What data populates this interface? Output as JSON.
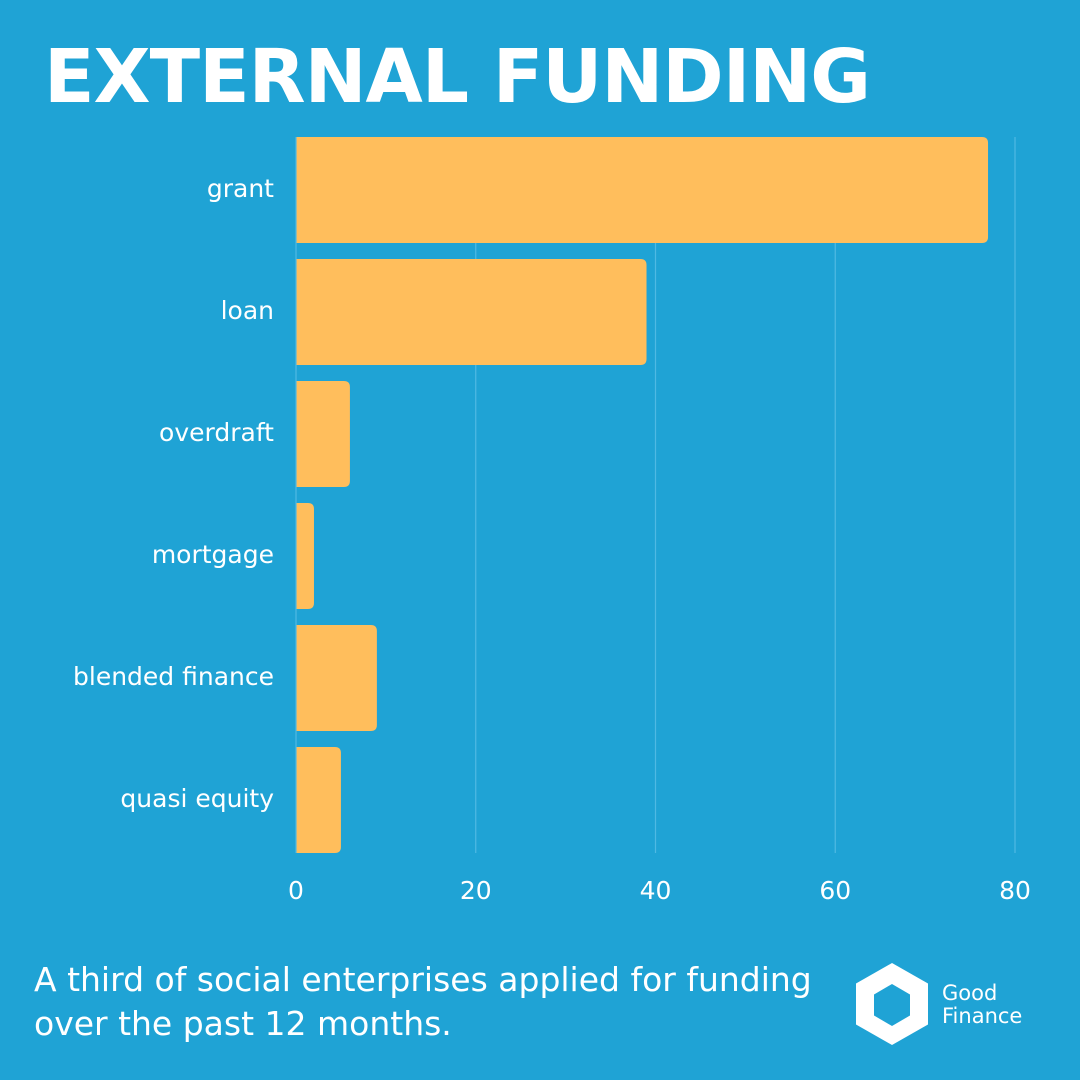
{
  "header": {
    "title": "EXTERNAL FUNDING"
  },
  "chart_data": {
    "type": "bar",
    "orientation": "horizontal",
    "title": "EXTERNAL FUNDING",
    "xlabel": "",
    "ylabel": "",
    "categories": [
      "grant",
      "loan",
      "overdraft",
      "mortgage",
      "blended finance",
      "quasi equity"
    ],
    "values": [
      77,
      39,
      6,
      2,
      9,
      5
    ],
    "xlim": [
      0,
      80
    ],
    "xticks": [
      0,
      20,
      40,
      60,
      80
    ],
    "grid": true,
    "bar_color": "#ffbe5c",
    "grid_color": "#4fb9e3"
  },
  "footer": {
    "text": "A third of social enterprises applied for funding over the past 12 months."
  },
  "logo": {
    "line1": "Good",
    "line2": "Finance",
    "icon": "hexagon-logo-icon"
  },
  "colors": {
    "background": "#1fa3d5",
    "text": "#ffffff",
    "bar": "#ffbe5c"
  }
}
